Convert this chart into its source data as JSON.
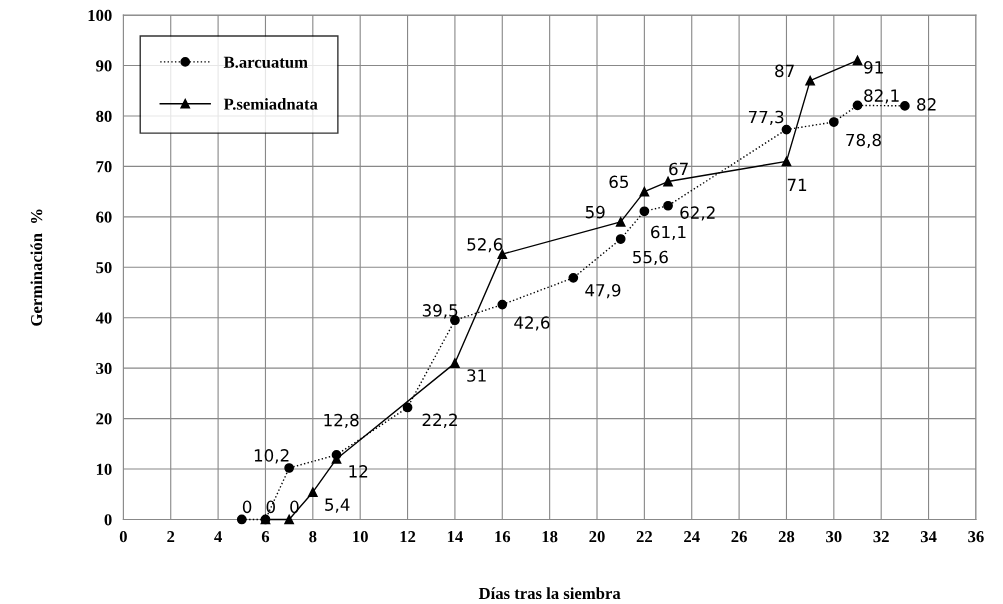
{
  "chart_data": {
    "type": "line",
    "xlabel": "Días tras la siembra",
    "ylabel": "Germinación  %",
    "xlim": [
      0,
      36
    ],
    "xticks": [
      0,
      2,
      4,
      6,
      8,
      10,
      12,
      14,
      16,
      18,
      20,
      22,
      24,
      26,
      28,
      30,
      32,
      34,
      36
    ],
    "ylim": [
      0,
      100
    ],
    "yticks": [
      0,
      10,
      20,
      30,
      40,
      50,
      60,
      70,
      80,
      90,
      100
    ],
    "grid": true,
    "legend": "top left",
    "series": [
      {
        "name": "B.arcuatum",
        "color": "#000000",
        "marker": "circle",
        "line_style": "dotted",
        "x": [
          5,
          6,
          7,
          9,
          12,
          14,
          16,
          19,
          21,
          22,
          23,
          28,
          30,
          31,
          33
        ],
        "values": [
          0,
          0,
          10.2,
          12.8,
          22.2,
          39.5,
          42.6,
          47.9,
          55.6,
          61.1,
          62.2,
          77.3,
          78.8,
          82.1,
          82
        ],
        "value_labels": [
          "0",
          "0",
          "10,2",
          "12,8",
          "22,2",
          "39,5",
          "42,6",
          "47,9",
          "55,6",
          "61,1",
          "62,2",
          "77,3",
          "78,8",
          "82,1",
          "82"
        ]
      },
      {
        "name": "P.semiadnata",
        "color": "#000000",
        "marker": "triangle",
        "line_style": "solid",
        "x": [
          6,
          7,
          8,
          9,
          14,
          16,
          21,
          22,
          23,
          28,
          29,
          31
        ],
        "values": [
          0,
          0,
          5.4,
          12,
          31,
          52.6,
          59,
          65,
          67,
          71,
          87,
          91
        ],
        "value_labels": [
          null,
          "0",
          "5,4",
          "12",
          "31",
          "52,6",
          "59",
          "65",
          "67",
          "71",
          "87",
          "91"
        ]
      }
    ]
  }
}
